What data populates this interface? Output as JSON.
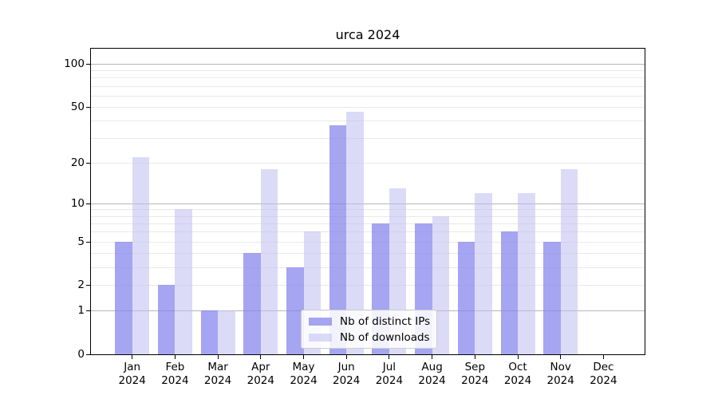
{
  "chart_data": {
    "type": "bar",
    "title": "urca 2024",
    "scale": "log1p",
    "categories": [
      "Jan",
      "Feb",
      "Mar",
      "Apr",
      "May",
      "Jun",
      "Jul",
      "Aug",
      "Sep",
      "Oct",
      "Nov",
      "Dec"
    ],
    "year": "2024",
    "series": [
      {
        "name": "Nb of distinct IPs",
        "values": [
          5,
          2,
          1,
          4,
          3,
          37,
          7,
          7,
          5,
          6,
          5,
          0
        ]
      },
      {
        "name": "Nb of downloads",
        "values": [
          22,
          9,
          1,
          18,
          6,
          46,
          13,
          8,
          12,
          12,
          18,
          0
        ]
      }
    ],
    "yticks": [
      0,
      1,
      2,
      5,
      10,
      20,
      50,
      100
    ],
    "ylim": [
      0,
      127
    ],
    "xlabel": "",
    "ylabel": "",
    "grid": "on",
    "gridlines": {
      "major": [
        1,
        10,
        100
      ],
      "minor": [
        2,
        3,
        4,
        5,
        6,
        7,
        8,
        9,
        20,
        30,
        40,
        50,
        60,
        70,
        80,
        90
      ]
    },
    "legend_position": "lower center",
    "colors": {
      "ips_bar": "rgba(130,130,235,0.72)",
      "downloads_bar": "rgba(190,190,240,0.55)",
      "grid_major": "#b6b6b6",
      "grid_minor": "#e9e9e9",
      "spine": "#000000",
      "text": "#000000"
    },
    "layout": {
      "x0": 51.7,
      "dx": 53.7,
      "bar_w": 21.5,
      "tick_len": 5
    }
  }
}
